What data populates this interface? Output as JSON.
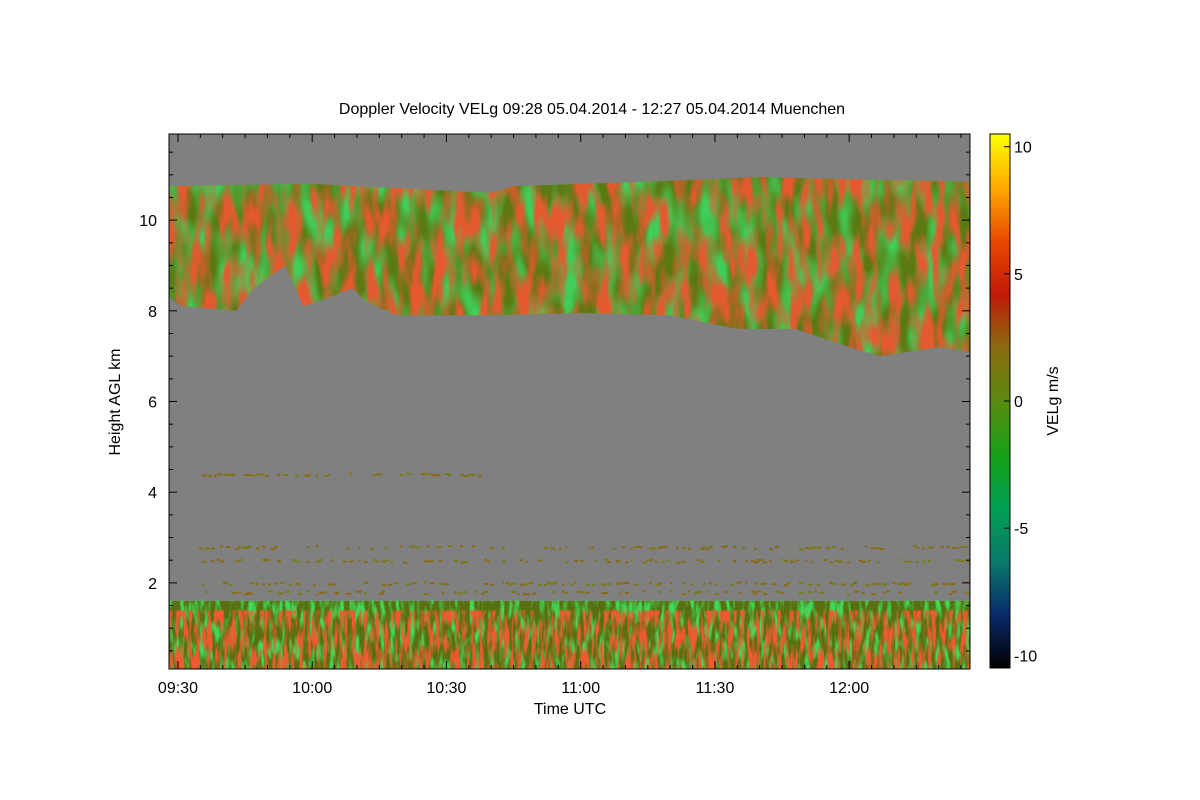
{
  "chart_data": {
    "type": "heatmap",
    "title": "Doppler Velocity VELg   09:28 05.04.2014 - 12:27 05.04.2014 Muenchen",
    "xlabel": "Time UTC",
    "ylabel": "Height AGL km",
    "colorbar_label": "VELg m/s",
    "x_range": [
      "09:28",
      "12:27"
    ],
    "y_range_km": [
      0.1,
      11.9
    ],
    "x_ticks": [
      {
        "label": "09:30",
        "minutes": 570
      },
      {
        "label": "10:00",
        "minutes": 600
      },
      {
        "label": "10:30",
        "minutes": 630
      },
      {
        "label": "11:00",
        "minutes": 660
      },
      {
        "label": "11:30",
        "minutes": 690
      },
      {
        "label": "12:00",
        "minutes": 720
      }
    ],
    "y_ticks": [
      {
        "label": "2",
        "value": 2
      },
      {
        "label": "4",
        "value": 4
      },
      {
        "label": "6",
        "value": 6
      },
      {
        "label": "8",
        "value": 8
      },
      {
        "label": "10",
        "value": 10
      }
    ],
    "colorbar_ticks": [
      {
        "label": "10",
        "value": 10
      },
      {
        "label": "5",
        "value": 5
      },
      {
        "label": "0",
        "value": 0
      },
      {
        "label": "-5",
        "value": -5
      },
      {
        "label": "-10",
        "value": -10
      }
    ],
    "colorbar_range": [
      -10.5,
      10.5
    ],
    "colors": {
      "no_signal": "#808080",
      "colormap": [
        "#000000",
        "#0a2a6a",
        "#0a7a6a",
        "#00a050",
        "#18a018",
        "#5a8a10",
        "#8a6a10",
        "#c01a08",
        "#e84a00",
        "#ffaa00",
        "#ffff00"
      ]
    },
    "cloud_layer": {
      "top_km": [
        {
          "t": 568,
          "h": 10.75
        },
        {
          "t": 600,
          "h": 10.8
        },
        {
          "t": 640,
          "h": 10.6
        },
        {
          "t": 645,
          "h": 10.75
        },
        {
          "t": 675,
          "h": 10.85
        },
        {
          "t": 700,
          "h": 10.95
        },
        {
          "t": 720,
          "h": 10.9
        },
        {
          "t": 747,
          "h": 10.85
        }
      ],
      "base_km": [
        {
          "t": 568,
          "h": 8.3
        },
        {
          "t": 571,
          "h": 8.1
        },
        {
          "t": 583,
          "h": 8.0
        },
        {
          "t": 587,
          "h": 8.5
        },
        {
          "t": 594,
          "h": 9.0
        },
        {
          "t": 598,
          "h": 8.1
        },
        {
          "t": 604,
          "h": 8.3
        },
        {
          "t": 609,
          "h": 8.5
        },
        {
          "t": 612,
          "h": 8.2
        },
        {
          "t": 619,
          "h": 7.9
        },
        {
          "t": 630,
          "h": 7.9
        },
        {
          "t": 640,
          "h": 7.9
        },
        {
          "t": 660,
          "h": 7.95
        },
        {
          "t": 680,
          "h": 7.9
        },
        {
          "t": 695,
          "h": 7.6
        },
        {
          "t": 708,
          "h": 7.6
        },
        {
          "t": 720,
          "h": 7.2
        },
        {
          "t": 727,
          "h": 7.0
        },
        {
          "t": 740,
          "h": 7.2
        },
        {
          "t": 747,
          "h": 7.1
        }
      ]
    },
    "boundary_layer": {
      "top_km": 1.6,
      "bottom_km": 0.1
    },
    "speckle_layers_km": [
      4.4,
      2.8,
      2.5,
      2.0,
      1.8
    ]
  }
}
